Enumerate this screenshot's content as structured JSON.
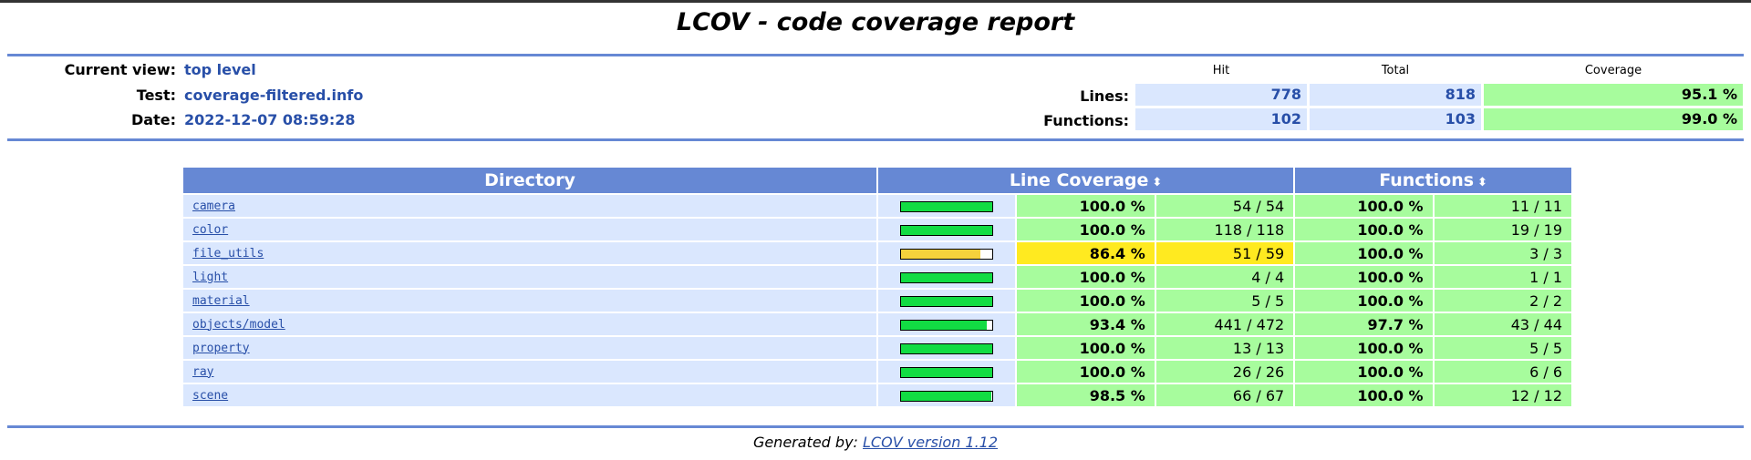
{
  "header": {
    "title": "LCOV - code coverage report"
  },
  "info": {
    "current_view_label": "Current view:",
    "current_view": "top level",
    "test_label": "Test:",
    "test": "coverage-filtered.info",
    "date_label": "Date:",
    "date": "2022-12-07 08:59:28"
  },
  "summary": {
    "col_hit": "Hit",
    "col_total": "Total",
    "col_coverage": "Coverage",
    "lines_label": "Lines:",
    "lines_hit": "778",
    "lines_total": "818",
    "lines_cov": "95.1 %",
    "functions_label": "Functions:",
    "functions_hit": "102",
    "functions_total": "103",
    "functions_cov": "99.0 %"
  },
  "table": {
    "col_directory": "Directory",
    "col_line_coverage": "Line Coverage",
    "col_functions": "Functions",
    "sort_icon": "sort-icon",
    "colors": {
      "hi": "#a7fc9d",
      "med": "#ffea20",
      "bar_hi": "#12dc43",
      "bar_med": "#f5d23c"
    },
    "rows": [
      {
        "name": "camera",
        "line_pct": "100.0 %",
        "line_frac": "54 / 54",
        "line_level": 1.0,
        "line_class": "hi",
        "fn_pct": "100.0 %",
        "fn_frac": "11 / 11"
      },
      {
        "name": "color",
        "line_pct": "100.0 %",
        "line_frac": "118 / 118",
        "line_level": 1.0,
        "line_class": "hi",
        "fn_pct": "100.0 %",
        "fn_frac": "19 / 19"
      },
      {
        "name": "file_utils",
        "line_pct": "86.4 %",
        "line_frac": "51 / 59",
        "line_level": 0.864,
        "line_class": "med",
        "fn_pct": "100.0 %",
        "fn_frac": "3 / 3"
      },
      {
        "name": "light",
        "line_pct": "100.0 %",
        "line_frac": "4 / 4",
        "line_level": 1.0,
        "line_class": "hi",
        "fn_pct": "100.0 %",
        "fn_frac": "1 / 1"
      },
      {
        "name": "material",
        "line_pct": "100.0 %",
        "line_frac": "5 / 5",
        "line_level": 1.0,
        "line_class": "hi",
        "fn_pct": "100.0 %",
        "fn_frac": "2 / 2"
      },
      {
        "name": "objects/model",
        "line_pct": "93.4 %",
        "line_frac": "441 / 472",
        "line_level": 0.934,
        "line_class": "hi",
        "fn_pct": "97.7 %",
        "fn_frac": "43 / 44"
      },
      {
        "name": "property",
        "line_pct": "100.0 %",
        "line_frac": "13 / 13",
        "line_level": 1.0,
        "line_class": "hi",
        "fn_pct": "100.0 %",
        "fn_frac": "5 / 5"
      },
      {
        "name": "ray",
        "line_pct": "100.0 %",
        "line_frac": "26 / 26",
        "line_level": 1.0,
        "line_class": "hi",
        "fn_pct": "100.0 %",
        "fn_frac": "6 / 6"
      },
      {
        "name": "scene",
        "line_pct": "98.5 %",
        "line_frac": "66 / 67",
        "line_level": 0.985,
        "line_class": "hi",
        "fn_pct": "100.0 %",
        "fn_frac": "12 / 12"
      }
    ]
  },
  "footer": {
    "prefix": "Generated by: ",
    "link": "LCOV version 1.12"
  }
}
